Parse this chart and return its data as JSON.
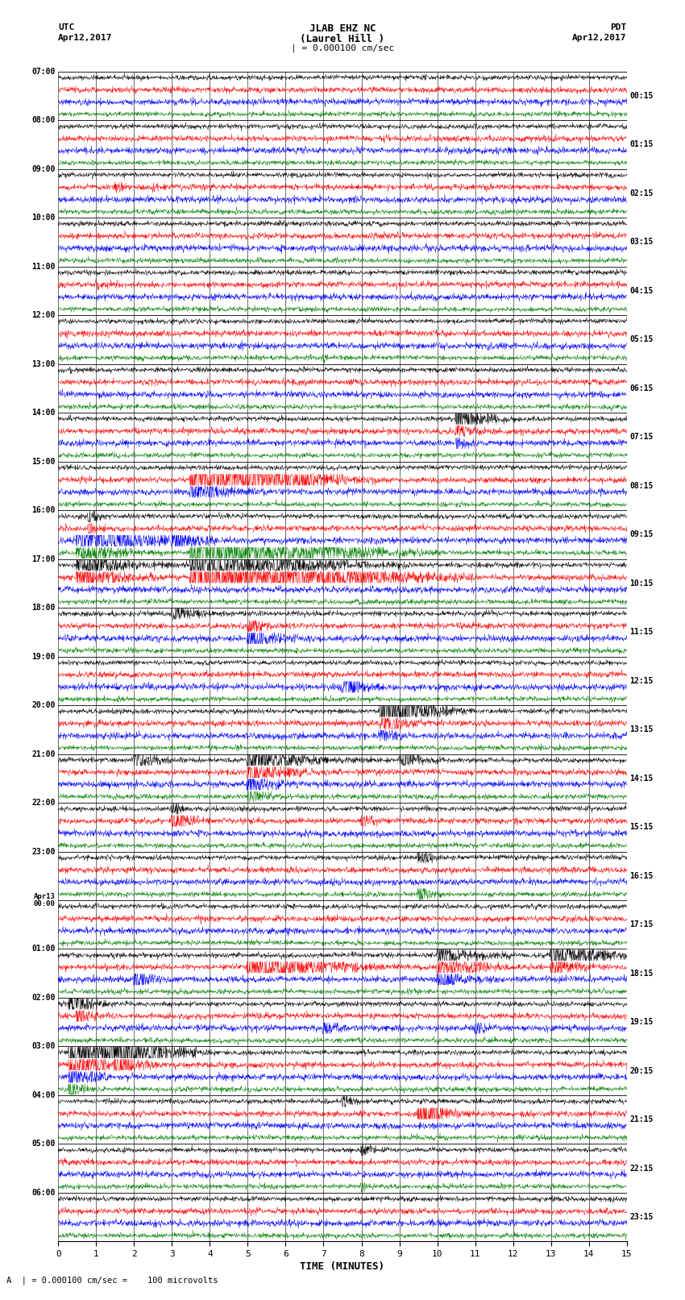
{
  "title_line1": "JLAB EHZ NC",
  "title_line2": "(Laurel Hill )",
  "scale_text": "| = 0.000100 cm/sec",
  "left_label_top": "UTC",
  "left_label_date": "Apr12,2017",
  "right_label_top": "PDT",
  "right_label_date": "Apr12,2017",
  "xlabel": "TIME (MINUTES)",
  "footer_text": "A  | = 0.000100 cm/sec =    100 microvolts",
  "utc_times": [
    "07:00",
    "08:00",
    "09:00",
    "10:00",
    "11:00",
    "12:00",
    "13:00",
    "14:00",
    "15:00",
    "16:00",
    "17:00",
    "18:00",
    "19:00",
    "20:00",
    "21:00",
    "22:00",
    "23:00",
    "Apr13\n00:00",
    "01:00",
    "02:00",
    "03:00",
    "04:00",
    "05:00",
    "06:00"
  ],
  "pdt_times": [
    "00:15",
    "01:15",
    "02:15",
    "03:15",
    "04:15",
    "05:15",
    "06:15",
    "07:15",
    "08:15",
    "09:15",
    "10:15",
    "11:15",
    "12:15",
    "13:15",
    "14:15",
    "15:15",
    "16:15",
    "17:15",
    "18:15",
    "19:15",
    "20:15",
    "21:15",
    "22:15",
    "23:15"
  ],
  "trace_colors": [
    "black",
    "red",
    "blue",
    "green"
  ],
  "bg_color": "white",
  "n_hours": 24,
  "traces_per_hour": 4,
  "x_min": 0,
  "x_max": 15,
  "seed": 12345
}
